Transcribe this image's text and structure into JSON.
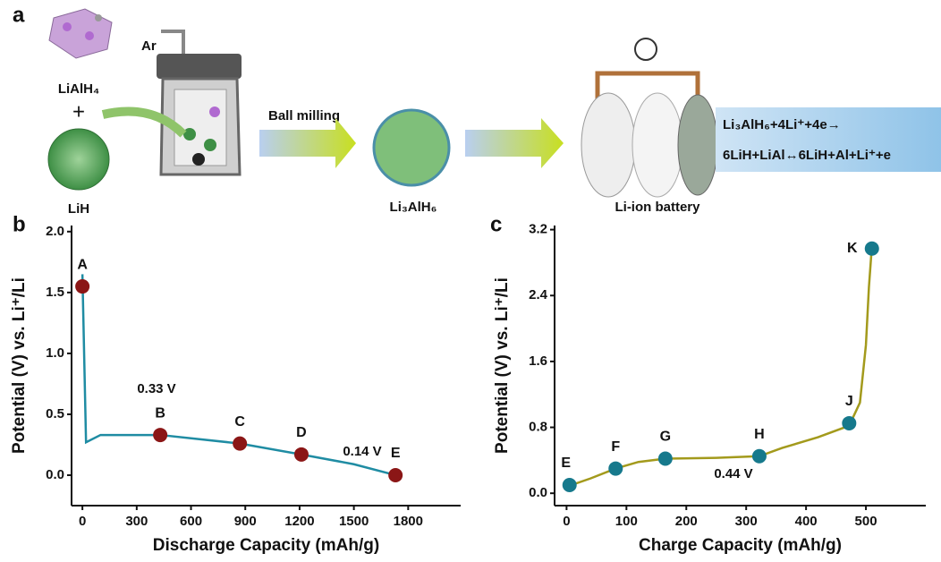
{
  "schematic": {
    "panel_label": "a",
    "reactant_1": "LiAlH₄",
    "plus": "+",
    "reactant_2": "LiH",
    "gas": "Ar",
    "process": "Ball milling",
    "product": "Li₃AlH₆",
    "device": "Li-ion battery",
    "reaction_1": "Li₃AlH₆+4Li⁺+4e→",
    "reaction_2": "6LiH+LiAl↔6LiH+Al+Li⁺+e"
  },
  "chart_data": [
    {
      "type": "line",
      "panel_label": "b",
      "x_label": "Discharge Capacity (mAh/g)",
      "y_label": "Potential (V) vs. Li⁺/Li",
      "xlim": [
        -60,
        2090
      ],
      "ylim": [
        -0.25,
        2.05
      ],
      "xticks": [
        0,
        300,
        600,
        900,
        1200,
        1500,
        1800
      ],
      "yticks": [
        {
          "value": 0,
          "label": "0.0"
        },
        0.5,
        {
          "value": 1,
          "label": "1.0"
        },
        1.5,
        {
          "value": 2,
          "label": "2.0"
        }
      ],
      "series": [
        {
          "color": "#1f8ca3",
          "x": [
            0,
            20,
            100,
            430,
            870,
            1210,
            1500,
            1730
          ],
          "values": [
            1.65,
            0.27,
            0.33,
            0.33,
            0.26,
            0.17,
            0.09,
            0.0
          ]
        }
      ],
      "points": {
        "color": "#8b1616",
        "x": [
          0,
          430,
          870,
          1210,
          1730
        ],
        "values": [
          1.55,
          0.33,
          0.26,
          0.17,
          0.0
        ],
        "labels": [
          "A",
          "B",
          "C",
          "D",
          "E"
        ]
      },
      "annotations": [
        "0.33 V",
        "0.14 V"
      ]
    },
    {
      "type": "line",
      "panel_label": "c",
      "x_label": "Charge Capacity (mAh/g)",
      "y_label": "Potential (V) vs. Li⁺/Li",
      "xlim": [
        -20,
        600
      ],
      "ylim": [
        -0.15,
        3.25
      ],
      "xticks": [
        0,
        100,
        200,
        300,
        400,
        500
      ],
      "yticks": [
        {
          "value": 0,
          "label": "0.0"
        },
        0.8,
        1.6,
        2.4,
        3.2
      ],
      "series": [
        {
          "color": "#a39a1c",
          "x": [
            0,
            40,
            82,
            120,
            165,
            250,
            322,
            360,
            420,
            472,
            490,
            500,
            505,
            510
          ],
          "values": [
            0.08,
            0.18,
            0.3,
            0.38,
            0.42,
            0.43,
            0.45,
            0.55,
            0.68,
            0.82,
            1.1,
            1.8,
            2.5,
            3.0
          ]
        }
      ],
      "points": {
        "color": "#16798c",
        "x": [
          5,
          82,
          165,
          322,
          472,
          510
        ],
        "values": [
          0.1,
          0.3,
          0.42,
          0.45,
          0.85,
          2.97
        ],
        "labels": [
          "E",
          "F",
          "G",
          "H",
          "J",
          "K"
        ]
      },
      "annotations": [
        "0.44 V"
      ]
    }
  ]
}
